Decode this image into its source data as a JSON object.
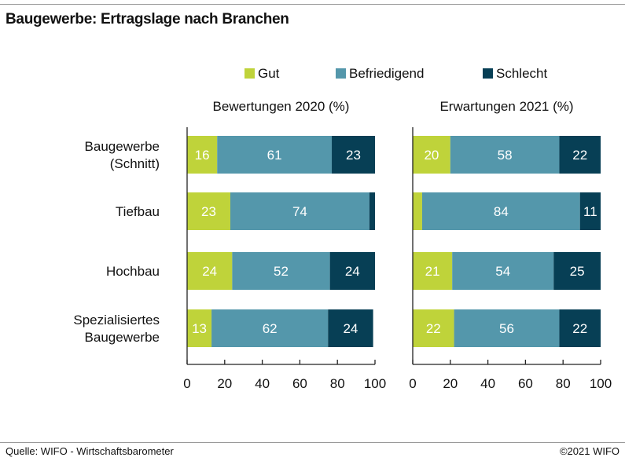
{
  "title": "Baugewerbe: Ertragslage nach Branchen",
  "footer": {
    "source": "Quelle: WIFO - Wirtschaftsbarometer",
    "copyright": "©2021 WIFO"
  },
  "colors": {
    "gut": "#bfd33a",
    "befriedigend": "#5497ab",
    "schlecht": "#073f55",
    "axis": "#222222"
  },
  "chart_data": {
    "type": "bar",
    "orientation": "horizontal",
    "stacked": true,
    "legend": [
      "Gut",
      "Befriedigend",
      "Schlecht"
    ],
    "legend_position": "top",
    "categories": [
      "Baugewerbe\n(Schnitt)",
      "Tiefbau",
      "Hochbau",
      "Spezialisiertes\nBaugewerbe"
    ],
    "xlim": [
      0,
      100
    ],
    "xticks": [
      0,
      20,
      40,
      60,
      80,
      100
    ],
    "panels": [
      {
        "title": "Bewertungen 2020 (%)",
        "series": [
          {
            "name": "Gut",
            "values": [
              16,
              23,
              24,
              13
            ],
            "labels": [
              "16",
              "23",
              "24",
              "13"
            ]
          },
          {
            "name": "Befriedigend",
            "values": [
              61,
              74,
              52,
              62
            ],
            "labels": [
              "61",
              "74",
              "52",
              "62"
            ]
          },
          {
            "name": "Schlecht",
            "values": [
              23,
              3,
              24,
              24
            ],
            "labels": [
              "23",
              "",
              "24",
              "24"
            ]
          }
        ]
      },
      {
        "title": "Erwartungen 2021 (%)",
        "series": [
          {
            "name": "Gut",
            "values": [
              20,
              5,
              21,
              22
            ],
            "labels": [
              "20",
              "",
              "21",
              "22"
            ]
          },
          {
            "name": "Befriedigend",
            "values": [
              58,
              84,
              54,
              56
            ],
            "labels": [
              "58",
              "84",
              "54",
              "56"
            ]
          },
          {
            "name": "Schlecht",
            "values": [
              22,
              11,
              25,
              22
            ],
            "labels": [
              "22",
              "11",
              "25",
              "22"
            ]
          }
        ]
      }
    ]
  }
}
